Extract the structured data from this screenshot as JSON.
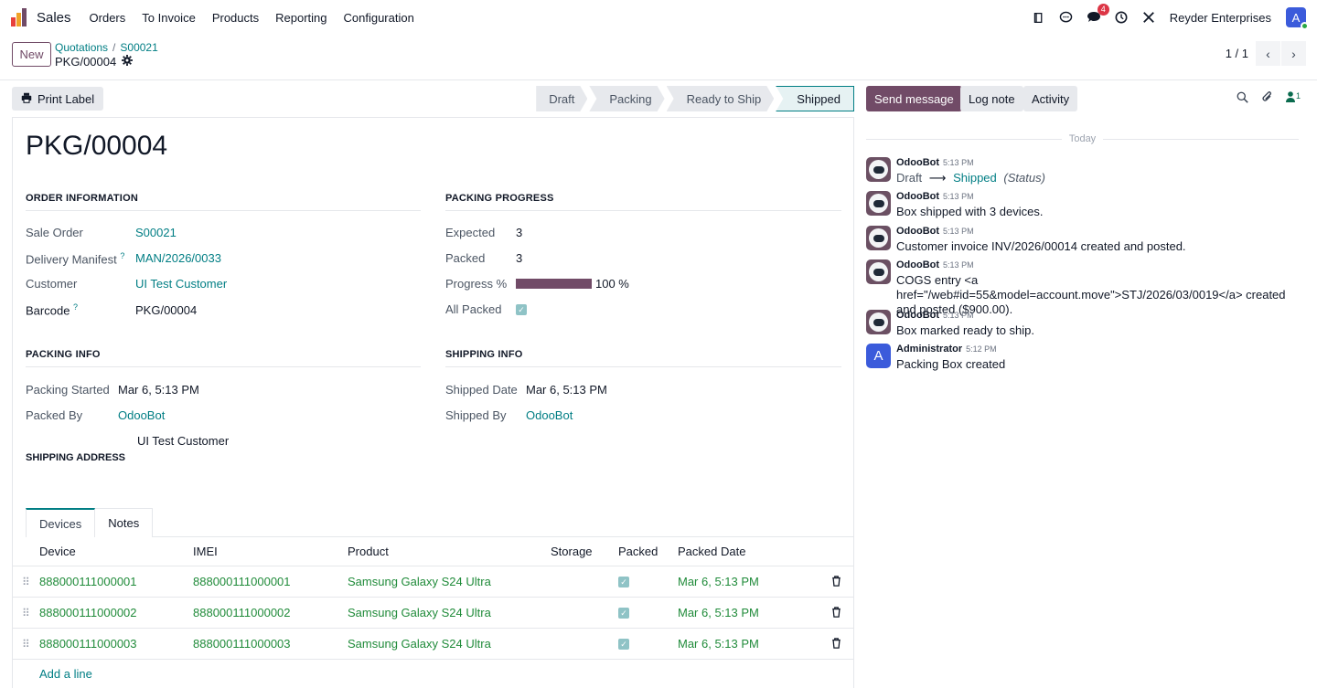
{
  "navbar": {
    "app_name": "Sales",
    "menu": [
      "Orders",
      "To Invoice",
      "Products",
      "Reporting",
      "Configuration"
    ],
    "messages_badge": "4",
    "company": "Reyder Enterprises",
    "avatar_letter": "A",
    "logo_colors": [
      "#e8413c",
      "#f0a328",
      "#714b67"
    ]
  },
  "control": {
    "new_label": "New",
    "breadcrumb": [
      "Quotations",
      "S00021"
    ],
    "record_name": "PKG/00004",
    "pager_value": "1 / 1"
  },
  "statusbar": {
    "print_label": "Print Label",
    "stages": [
      "Draft",
      "Packing",
      "Ready to Ship",
      "Shipped"
    ],
    "active_stage": "Shipped"
  },
  "form": {
    "title": "PKG/00004",
    "order_info": {
      "title": "ORDER INFORMATION",
      "sale_order_label": "Sale Order",
      "sale_order": "S00021",
      "manifest_label": "Delivery Manifest",
      "manifest_help": "?",
      "manifest": "MAN/2026/0033",
      "customer_label": "Customer",
      "customer": "UI Test Customer",
      "barcode_label": "Barcode",
      "barcode_help": "?",
      "barcode": "PKG/00004"
    },
    "packing_progress": {
      "title": "PACKING PROGRESS",
      "expected_label": "Expected",
      "expected": "3",
      "packed_label": "Packed",
      "packed": "3",
      "progress_label": "Progress %",
      "progress_value": 100,
      "progress_text": "100 %",
      "all_packed_label": "All Packed",
      "all_packed": true
    },
    "packing_info": {
      "title": "PACKING INFO",
      "started_label": "Packing Started",
      "started": "Mar 6, 5:13 PM",
      "packed_by_label": "Packed By",
      "packed_by": "OdooBot"
    },
    "shipping_info": {
      "title": "SHIPPING INFO",
      "shipped_date_label": "Shipped Date",
      "shipped_date": "Mar 6, 5:13 PM",
      "shipped_by_label": "Shipped By",
      "shipped_by": "OdooBot"
    },
    "shipping_address": {
      "title": "SHIPPING ADDRESS",
      "value": "UI Test Customer"
    },
    "tabs": [
      "Devices",
      "Notes"
    ],
    "table": {
      "columns": [
        "Device",
        "IMEI",
        "Product",
        "Storage",
        "Packed",
        "Packed Date"
      ],
      "rows": [
        {
          "device": "888000111000001",
          "imei": "888000111000001",
          "product": "Samsung Galaxy S24 Ultra",
          "storage": "",
          "packed": true,
          "packed_date": "Mar 6, 5:13 PM"
        },
        {
          "device": "888000111000002",
          "imei": "888000111000002",
          "product": "Samsung Galaxy S24 Ultra",
          "storage": "",
          "packed": true,
          "packed_date": "Mar 6, 5:13 PM"
        },
        {
          "device": "888000111000003",
          "imei": "888000111000003",
          "product": "Samsung Galaxy S24 Ultra",
          "storage": "",
          "packed": true,
          "packed_date": "Mar 6, 5:13 PM"
        }
      ],
      "add_line": "Add a line"
    }
  },
  "chatter": {
    "send_message": "Send message",
    "log_note": "Log note",
    "activity": "Activity",
    "followers_count": "1",
    "date_separator": "Today",
    "messages": [
      {
        "author": "OdooBot",
        "time": "5:13 PM",
        "type": "tracking",
        "old": "Draft",
        "new": "Shipped",
        "field": "(Status)"
      },
      {
        "author": "OdooBot",
        "time": "5:13 PM",
        "type": "text",
        "body": "Box shipped with 3 devices."
      },
      {
        "author": "OdooBot",
        "time": "5:13 PM",
        "type": "text",
        "body": "Customer invoice INV/2026/00014 created and posted."
      },
      {
        "author": "OdooBot",
        "time": "5:13 PM",
        "type": "text",
        "body": "COGS entry <a href=\"/web#id=55&model=account.move\">STJ/2026/03/0019</a> created and posted ($900.00)."
      },
      {
        "author": "OdooBot",
        "time": "5:13 PM",
        "type": "text",
        "body": "Box marked ready to ship."
      },
      {
        "author": "Administrator",
        "time": "5:12 PM",
        "type": "text",
        "body": "Packing Box created",
        "avatar_letter": "A"
      }
    ]
  }
}
